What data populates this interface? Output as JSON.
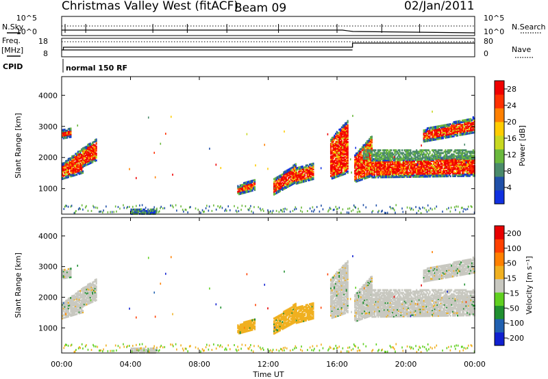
{
  "header": {
    "title": "Christmas Valley West (fitACF)",
    "beam": "Beam 09",
    "date": "02/Jan/2011"
  },
  "summary": {
    "nsky_label": "N.Sky",
    "nsearch_label": "N.Search",
    "nsky_ticks": [
      "10^5",
      "10^0"
    ],
    "nsearch_ticks": [
      "10^5",
      "10^0"
    ],
    "freq_label": "Freq.",
    "freq_unit": "[MHz]",
    "freq_ticks": [
      "18",
      "8"
    ],
    "nave_label": "Nave",
    "nave_ticks": [
      "80",
      "0"
    ],
    "cpid_label": "CPID",
    "cpid_value": "normal 150 RF"
  },
  "chart_data": [
    {
      "type": "heatmap",
      "name": "power",
      "ylabel": "Slant Range [km]",
      "yticks": [
        "1000",
        "2000",
        "3000",
        "4000"
      ],
      "ylim": [
        180,
        4600
      ],
      "colorbar_label": "Power [dB]",
      "colorbar_ticks": [
        "4",
        "8",
        "12",
        "16",
        "20",
        "24",
        "28"
      ],
      "colorbar_colors": [
        "#1030e0",
        "#2050a8",
        "#4a8a6a",
        "#6ab83c",
        "#c8d820",
        "#ffcc00",
        "#ff8000",
        "#ff3000",
        "#f00000"
      ],
      "colorbar_range": [
        0,
        30
      ]
    },
    {
      "type": "heatmap",
      "name": "velocity",
      "ylabel": "Slant Range [km]",
      "yticks": [
        "1000",
        "2000",
        "3000",
        "4000"
      ],
      "ylim": [
        180,
        4600
      ],
      "colorbar_label": "Velocity [m s⁻¹]",
      "colorbar_ticks": [
        "200",
        "100",
        "50",
        "15",
        "-15",
        "-50",
        "-100",
        "-200"
      ],
      "colorbar_colors": [
        "#1020d0",
        "#2060b0",
        "#209030",
        "#60d020",
        "#c8c8c0",
        "#f0b020",
        "#ff8000",
        "#ff4000",
        "#e80000"
      ],
      "xlabel": "Time UT",
      "xticks": [
        "00:00",
        "04:00",
        "08:00",
        "12:00",
        "16:00",
        "20:00",
        "00:00"
      ]
    }
  ]
}
